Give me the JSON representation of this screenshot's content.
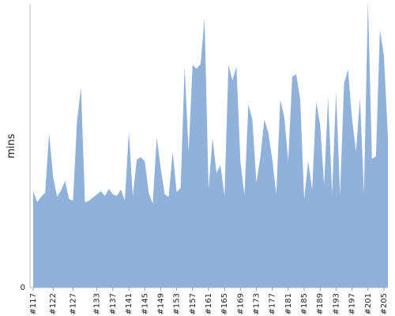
{
  "chart_data": {
    "type": "area",
    "ylabel": "mins",
    "xlabel": "",
    "title": "",
    "y_tick_labels": [
      "0"
    ],
    "ylim": [
      0,
      360
    ],
    "fill_color": "#8fb1da",
    "x_tick_labels": [
      "#117",
      "#122",
      "#127",
      "#133",
      "#137",
      "#141",
      "#145",
      "#149",
      "#153",
      "#157",
      "#161",
      "#165",
      "#169",
      "#173",
      "#177",
      "#181",
      "#185",
      "#189",
      "#193",
      "#197",
      "#201",
      "#205"
    ],
    "x_tick_index": [
      0,
      5,
      10,
      16,
      20,
      24,
      28,
      32,
      36,
      40,
      44,
      48,
      52,
      56,
      60,
      64,
      68,
      72,
      76,
      80,
      84,
      88
    ],
    "values": [
      122,
      108,
      115,
      120,
      195,
      140,
      115,
      123,
      135,
      112,
      110,
      211,
      253,
      108,
      110,
      114,
      118,
      122,
      116,
      125,
      118,
      116,
      124,
      110,
      197,
      116,
      162,
      165,
      160,
      120,
      106,
      190,
      151,
      118,
      115,
      172,
      121,
      126,
      280,
      171,
      282,
      277,
      283,
      341,
      125,
      189,
      145,
      155,
      116,
      282,
      262,
      280,
      159,
      117,
      232,
      212,
      133,
      165,
      213,
      196,
      162,
      118,
      238,
      216,
      160,
      267,
      270,
      238,
      112,
      160,
      124,
      235,
      206,
      130,
      241,
      119,
      248,
      117,
      258,
      276,
      214,
      172,
      240,
      119,
      363,
      163,
      166,
      326,
      294,
      191
    ]
  }
}
